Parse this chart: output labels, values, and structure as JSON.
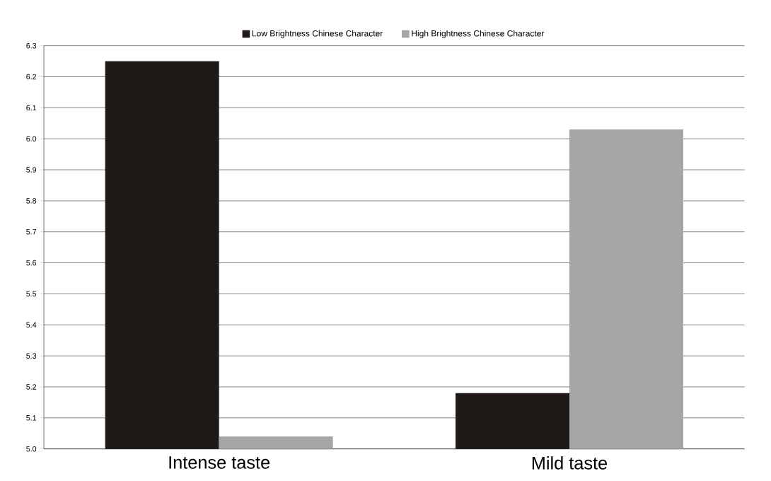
{
  "chart_data": {
    "type": "bar",
    "categories": [
      "Intense taste",
      "Mild taste"
    ],
    "series": [
      {
        "name": "Low Brightness Chinese Character",
        "color": "#1f1a17",
        "values": [
          6.25,
          5.18
        ]
      },
      {
        "name": "High Brightness Chinese Character",
        "color": "#a6a6a6",
        "values": [
          5.04,
          6.03
        ]
      }
    ],
    "ylim": [
      5.0,
      6.3
    ],
    "yticks": [
      {
        "value": 5.0,
        "label": "5.0"
      },
      5.1,
      5.2,
      5.3,
      5.4,
      5.5,
      5.6,
      5.7,
      5.8,
      5.9,
      {
        "value": 6.0,
        "label": "6.0"
      },
      6.1,
      6.2,
      6.3
    ],
    "grid": "y",
    "legend": "top"
  }
}
